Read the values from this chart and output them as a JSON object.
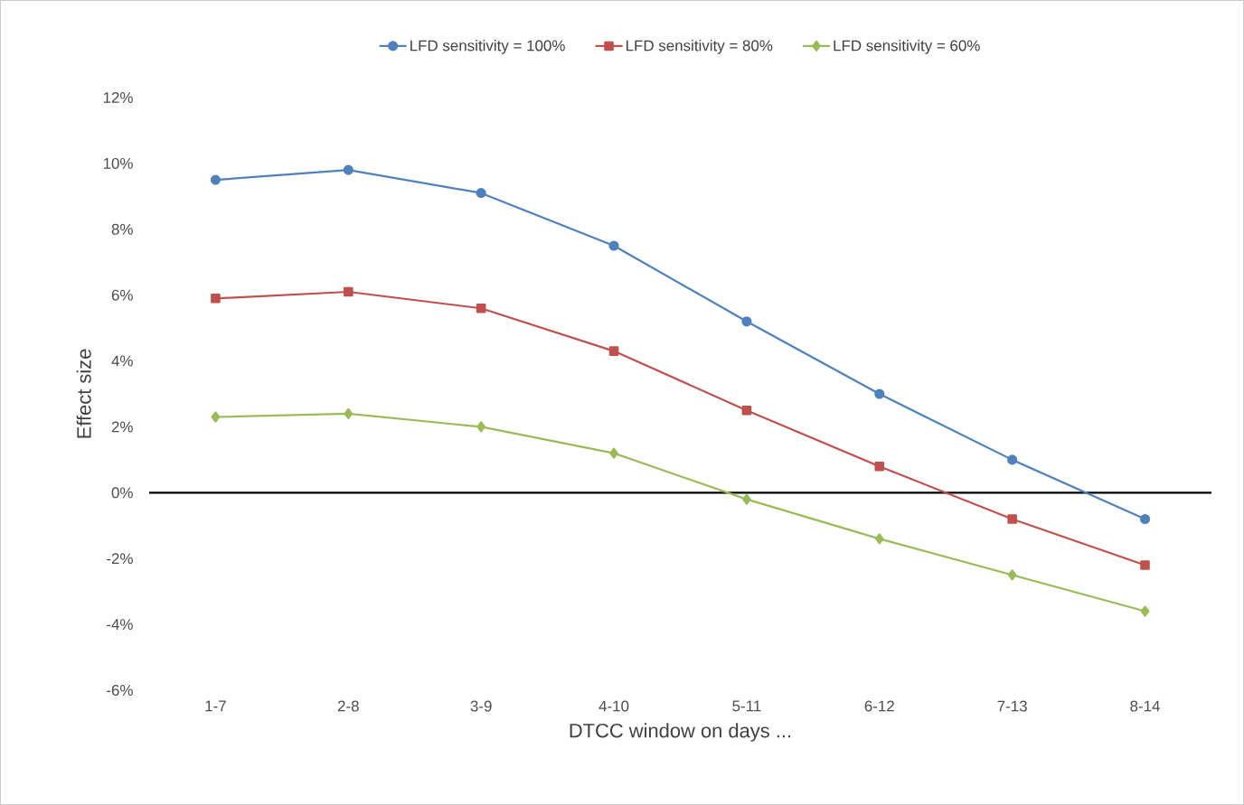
{
  "chart_data": {
    "type": "line",
    "xlabel": "DTCC window on days ...",
    "ylabel": "Effect size",
    "categories": [
      "1-7",
      "2-8",
      "3-9",
      "4-10",
      "5-11",
      "6-12",
      "7-13",
      "8-14"
    ],
    "series": [
      {
        "name": "LFD sensitivity = 100%",
        "color": "#4f81bd",
        "marker": "circle",
        "values": [
          9.5,
          9.8,
          9.1,
          7.5,
          5.2,
          3.0,
          1.0,
          -0.8
        ]
      },
      {
        "name": "LFD sensitivity = 80%",
        "color": "#c0504d",
        "marker": "square",
        "values": [
          5.9,
          6.1,
          5.6,
          4.3,
          2.5,
          0.8,
          -0.8,
          -2.2
        ]
      },
      {
        "name": "LFD sensitivity = 60%",
        "color": "#9bbb59",
        "marker": "diamond",
        "values": [
          2.3,
          2.4,
          2.0,
          1.2,
          -0.2,
          -1.4,
          -2.5,
          -3.6
        ]
      }
    ],
    "ylim": [
      -6,
      12
    ],
    "yticks": [
      {
        "value": -6,
        "label": "-6%"
      },
      {
        "value": -4,
        "label": "-4%"
      },
      {
        "value": -2,
        "label": "-2%"
      },
      {
        "value": 0,
        "label": "0%"
      },
      {
        "value": 2,
        "label": "2%"
      },
      {
        "value": 4,
        "label": "4%"
      },
      {
        "value": 6,
        "label": "6%"
      },
      {
        "value": 8,
        "label": "8%"
      },
      {
        "value": 10,
        "label": "10%"
      },
      {
        "value": 12,
        "label": "12%"
      }
    ],
    "ref_lines": [
      {
        "axis": "y",
        "value": 0,
        "color": "#000000"
      }
    ],
    "grid": false,
    "legend": "top",
    "line_style": "solid"
  }
}
